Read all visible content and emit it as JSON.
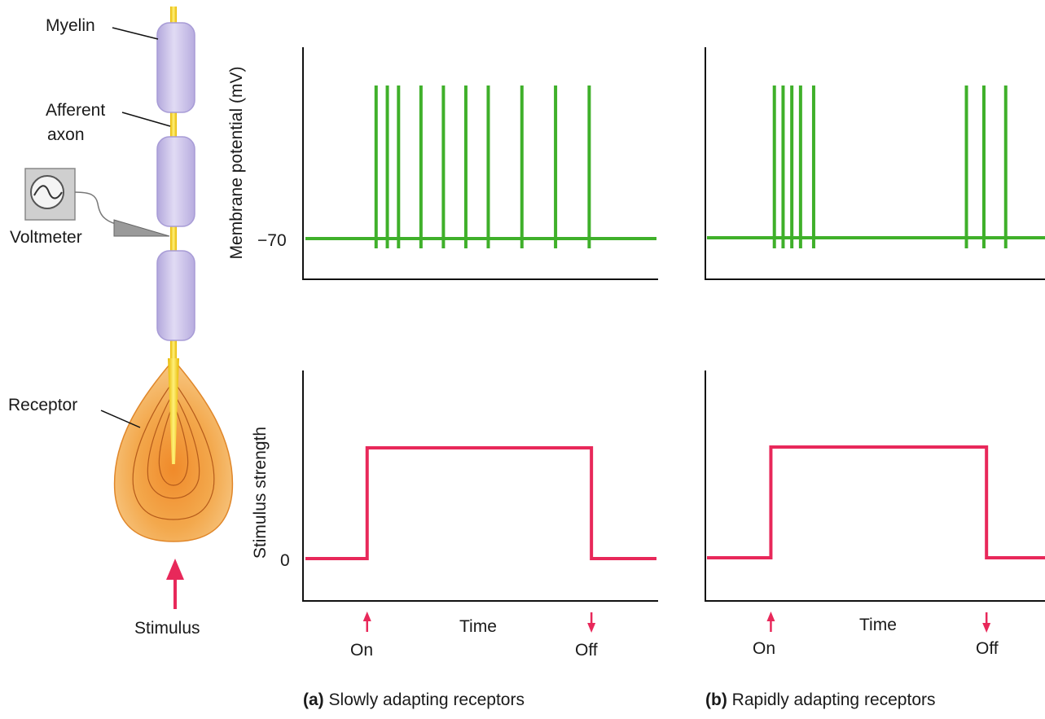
{
  "diagram": {
    "labels": {
      "myelin": "Myelin",
      "afferent_line1": "Afferent",
      "afferent_line2": "axon",
      "voltmeter": "Voltmeter",
      "receptor": "Receptor",
      "stimulus": "Stimulus"
    },
    "axes": {
      "membrane_ylabel": "Membrane potential (mV)",
      "membrane_tick": "−70",
      "stimulus_ylabel": "Stimulus strength",
      "stimulus_tick": "0",
      "time_label": "Time",
      "on_label": "On",
      "off_label": "Off"
    },
    "colors": {
      "spike": "#3fb02a",
      "stimulus": "#e8285a",
      "axon": "#f5d21a",
      "myelin": "#c9c0e6",
      "receptor": "#f2b45c"
    },
    "panels": [
      {
        "id": "a",
        "caption_letter": "(a)",
        "caption_text": "Slowly adapting receptors",
        "spike_times": [
          1,
          2,
          3,
          5,
          7,
          9,
          11,
          14,
          17,
          20
        ],
        "stim_on": 0.2,
        "stim_off": 20.2,
        "t_max": 26
      },
      {
        "id": "b",
        "caption_letter": "(b)",
        "caption_text": "Rapidly adapting receptors",
        "spike_times": [
          1,
          2,
          3,
          4,
          5.5,
          23,
          25,
          27.5
        ],
        "stim_on": 0.6,
        "stim_off": 25.3,
        "t_max": 32
      }
    ]
  }
}
